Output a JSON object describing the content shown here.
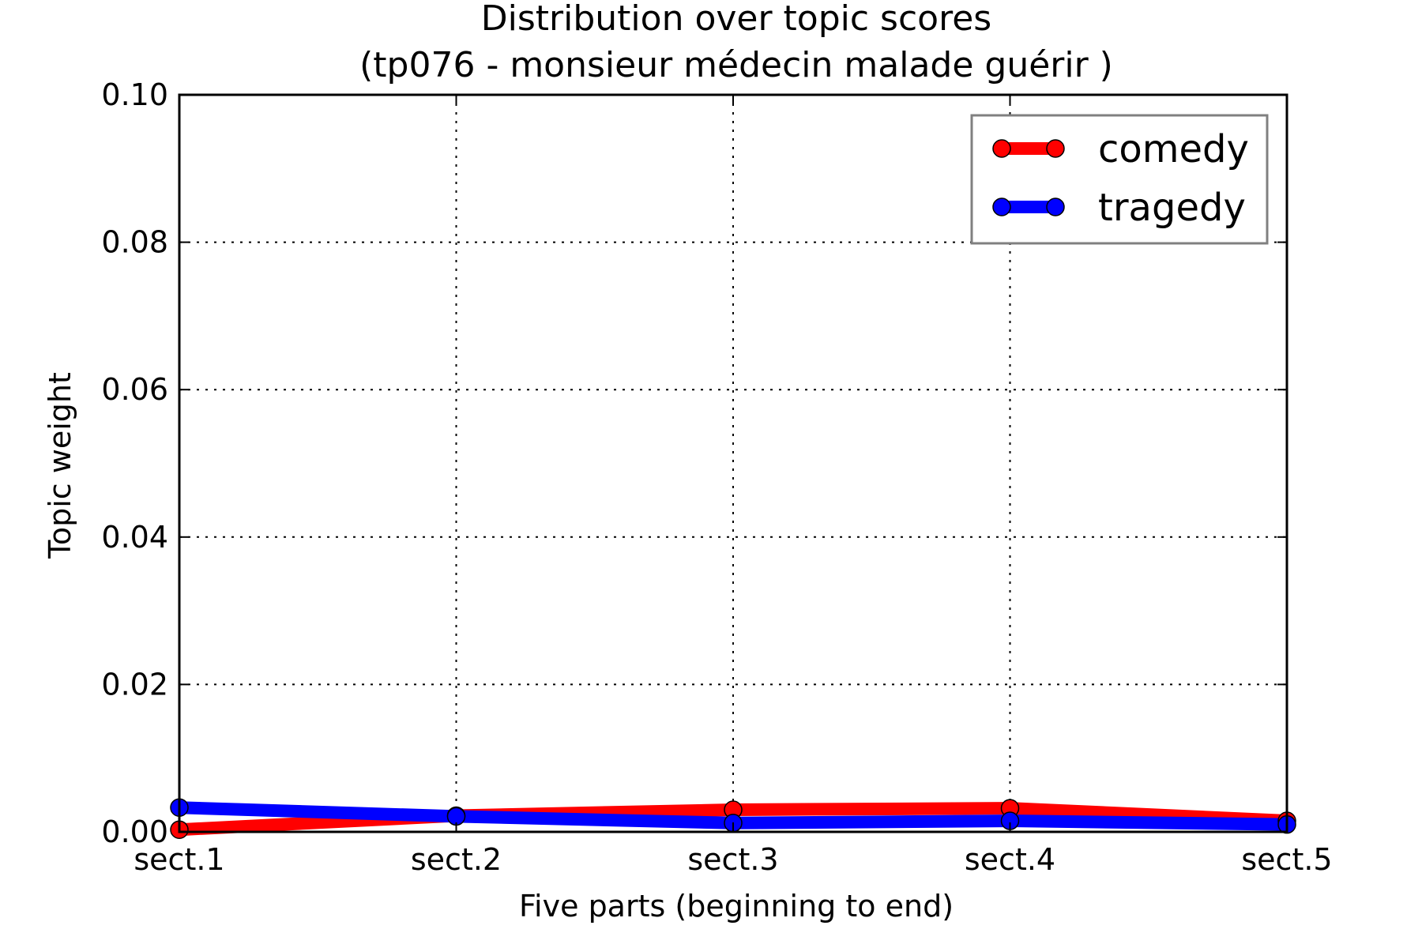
{
  "chart_data": {
    "type": "line",
    "title": "Distribution over topic scores",
    "subtitle": "(tp076 - monsieur médecin malade guérir )",
    "xlabel": "Five parts (beginning to end)",
    "ylabel": "Topic weight",
    "categories": [
      "sect.1",
      "sect.2",
      "sect.3",
      "sect.4",
      "sect.5"
    ],
    "y_ticks": [
      "0.00",
      "0.02",
      "0.04",
      "0.06",
      "0.08",
      "0.10"
    ],
    "ylim": [
      0,
      0.1
    ],
    "grid": true,
    "legend_position": "top-right",
    "series": [
      {
        "name": "comedy",
        "color": "#ff0000",
        "values": [
          0.0003,
          0.0022,
          0.003,
          0.0032,
          0.0015
        ]
      },
      {
        "name": "tragedy",
        "color": "#0000ff",
        "values": [
          0.0033,
          0.0021,
          0.0012,
          0.0015,
          0.001
        ]
      }
    ]
  }
}
